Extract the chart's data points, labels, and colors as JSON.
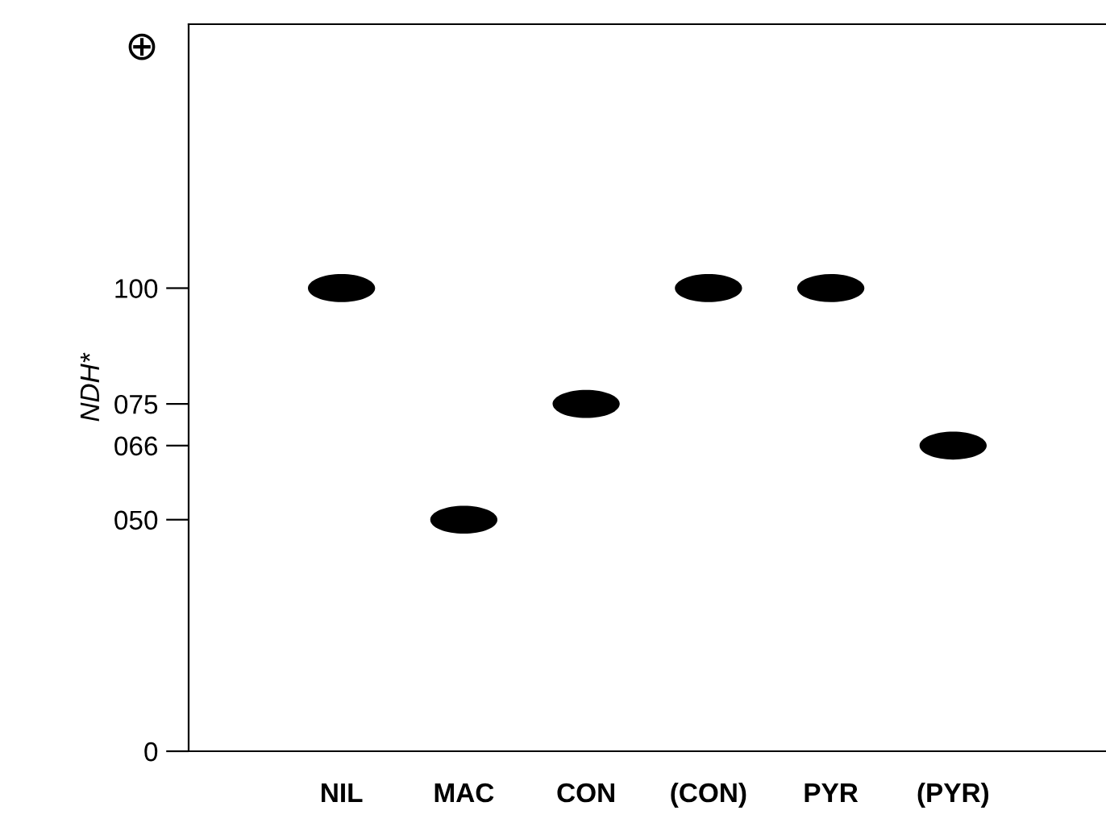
{
  "chart_data": {
    "type": "scatter",
    "ylabel": "NDH*",
    "categories": [
      "NIL",
      "MAC",
      "CON",
      "(CON)",
      "PYR",
      "(PYR)"
    ],
    "series": [
      {
        "color": "#000000",
        "values": [
          100,
          50,
          75,
          100,
          100,
          66
        ]
      }
    ],
    "ylim": [
      0,
      157
    ],
    "yticks": [
      0,
      {
        "value": 50,
        "label": "050"
      },
      {
        "value": 66,
        "label": "066"
      },
      {
        "value": 75,
        "label": "075"
      },
      100
    ],
    "annotations": [
      "⊕"
    ],
    "grid": false
  }
}
